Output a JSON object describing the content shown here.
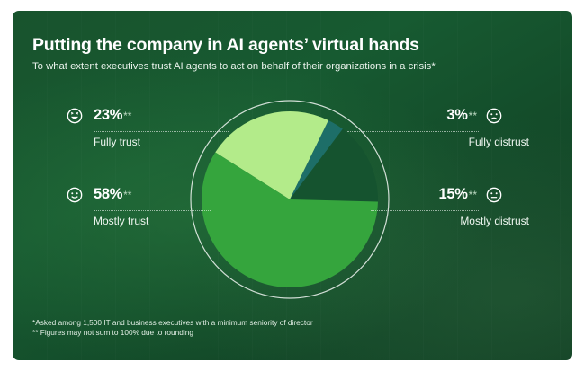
{
  "header": {
    "title": "Putting the company in AI agents’ virtual hands",
    "subtitle": "To what extent executives trust AI agents to act on behalf of their organizations in a crisis*"
  },
  "footnotes": {
    "note1": "*Asked among 1,500 IT and business executives with a minimum seniority of director",
    "note2": "** Figures may not sum to 100% due to rounding"
  },
  "colors": {
    "fully_trust": "#b3eb8a",
    "mostly_trust": "#35a53d",
    "mostly_distrust": "#15532f",
    "fully_distrust": "#1d6e68"
  },
  "callouts": {
    "fully_trust": {
      "value": "23%",
      "stars": "**",
      "label": "Fully trust",
      "icon": "laughing-face-icon"
    },
    "mostly_trust": {
      "value": "58%",
      "stars": "**",
      "label": "Mostly trust",
      "icon": "smiling-face-icon"
    },
    "fully_distrust": {
      "value": "3%",
      "stars": "**",
      "label": "Fully distrust",
      "icon": "frowning-face-icon"
    },
    "mostly_distrust": {
      "value": "15%",
      "stars": "**",
      "label": "Mostly distrust",
      "icon": "neutral-face-icon"
    }
  },
  "chart_data": {
    "type": "pie",
    "categories": [
      "Fully trust",
      "Fully distrust",
      "Mostly distrust",
      "Mostly trust"
    ],
    "values": [
      23,
      3,
      15,
      58
    ],
    "colors": [
      "#b3eb8a",
      "#1d6e68",
      "#15532f",
      "#35a53d"
    ],
    "start": "top-left, clockwise"
  }
}
